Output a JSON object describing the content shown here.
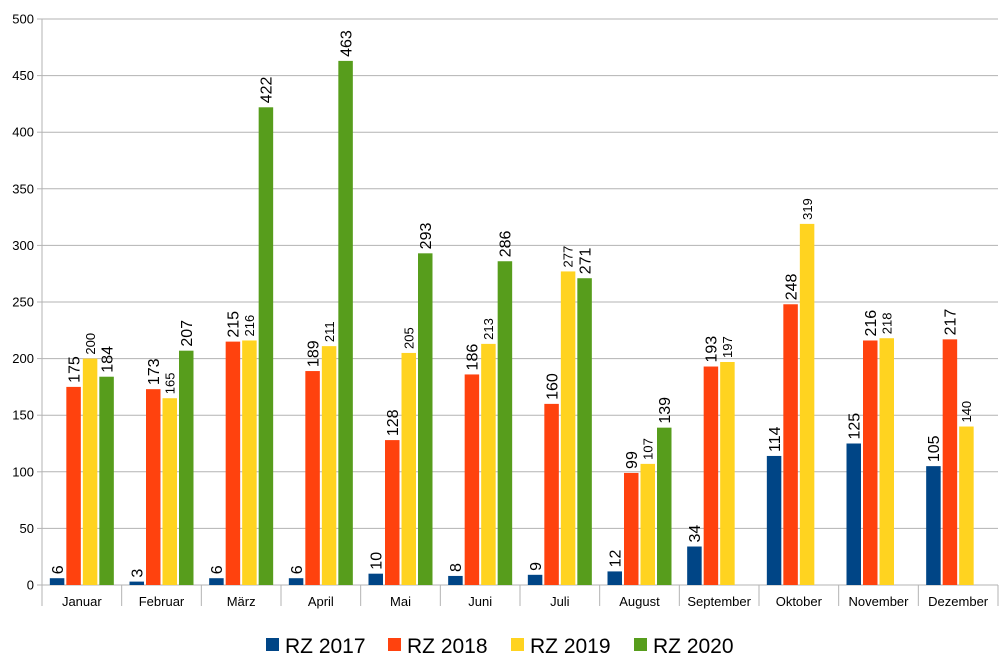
{
  "chart_data": {
    "type": "bar",
    "title": "",
    "xlabel": "",
    "ylabel": "",
    "ylim": [
      0,
      500
    ],
    "yticks": [
      0,
      50,
      100,
      150,
      200,
      250,
      300,
      350,
      400,
      450,
      500
    ],
    "grid": true,
    "legend_position": "bottom",
    "categories": [
      "Januar",
      "Februar",
      "März",
      "April",
      "Mai",
      "Juni",
      "Juli",
      "August",
      "September",
      "Oktober",
      "November",
      "Dezember"
    ],
    "series": [
      {
        "name": "RZ 2017",
        "color": "#004586",
        "values": [
          6,
          3,
          6,
          6,
          10,
          8,
          9,
          12,
          34,
          114,
          125,
          105
        ]
      },
      {
        "name": "RZ 2018",
        "color": "#ff420e",
        "values": [
          175,
          173,
          215,
          189,
          128,
          186,
          160,
          99,
          193,
          248,
          216,
          217
        ]
      },
      {
        "name": "RZ 2019",
        "color": "#ffd320",
        "values": [
          200,
          165,
          216,
          211,
          205,
          213,
          277,
          107,
          197,
          319,
          218,
          140
        ]
      },
      {
        "name": "RZ 2020",
        "color": "#579d1c",
        "values": [
          184,
          207,
          422,
          463,
          293,
          286,
          271,
          139,
          null,
          null,
          null,
          null
        ]
      }
    ]
  }
}
